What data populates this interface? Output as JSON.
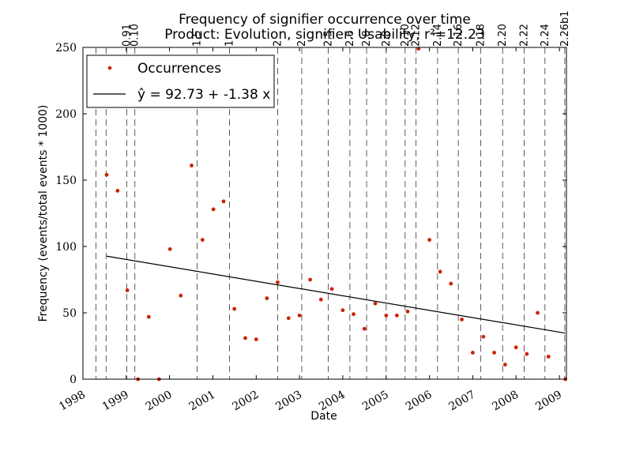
{
  "chart_data": {
    "type": "scatter",
    "title": "Frequency of signifier occurrence over time",
    "subtitle": "Product: Evolution, signifier: Usability, r²=12.23",
    "xlabel": "Date",
    "ylabel": "Frequency (events/total events * 1000)",
    "xlim": [
      "1998-01-01",
      "2009-03-01"
    ],
    "ylim": [
      0,
      250
    ],
    "yticks": [
      0,
      50,
      100,
      150,
      200,
      250
    ],
    "xticks": [
      {
        "label": "1998",
        "date": "1998-01-01"
      },
      {
        "label": "1999",
        "date": "1999-01-01"
      },
      {
        "label": "2000",
        "date": "2000-01-01"
      },
      {
        "label": "2001",
        "date": "2001-01-01"
      },
      {
        "label": "2002",
        "date": "2002-01-01"
      },
      {
        "label": "2003",
        "date": "2003-01-01"
      },
      {
        "label": "2004",
        "date": "2004-01-01"
      },
      {
        "label": "2005",
        "date": "2005-01-01"
      },
      {
        "label": "2006",
        "date": "2006-01-01"
      },
      {
        "label": "2007",
        "date": "2007-01-01"
      },
      {
        "label": "2008",
        "date": "2008-01-01"
      },
      {
        "label": "2009",
        "date": "2009-01-01"
      }
    ],
    "grid": false,
    "legend": {
      "position": "top-left"
    },
    "series": [
      {
        "name": "Occurrences",
        "color": "#cc2200",
        "points": [
          {
            "x": "1998-07-20",
            "y": 154
          },
          {
            "x": "1998-10-20",
            "y": 142
          },
          {
            "x": "1999-01-10",
            "y": 67
          },
          {
            "x": "1999-04-10",
            "y": 0
          },
          {
            "x": "1999-07-10",
            "y": 47
          },
          {
            "x": "1999-10-05",
            "y": 0
          },
          {
            "x": "2000-01-05",
            "y": 98
          },
          {
            "x": "2000-04-05",
            "y": 63
          },
          {
            "x": "2000-07-05",
            "y": 161
          },
          {
            "x": "2000-10-05",
            "y": 105
          },
          {
            "x": "2001-01-05",
            "y": 128
          },
          {
            "x": "2001-04-01",
            "y": 134
          },
          {
            "x": "2001-07-01",
            "y": 53
          },
          {
            "x": "2001-10-01",
            "y": 31
          },
          {
            "x": "2002-01-01",
            "y": 30
          },
          {
            "x": "2002-04-01",
            "y": 61
          },
          {
            "x": "2002-07-01",
            "y": 73
          },
          {
            "x": "2002-10-01",
            "y": 46
          },
          {
            "x": "2003-01-01",
            "y": 48
          },
          {
            "x": "2003-04-01",
            "y": 75
          },
          {
            "x": "2003-07-01",
            "y": 60
          },
          {
            "x": "2003-10-01",
            "y": 68
          },
          {
            "x": "2004-01-01",
            "y": 52
          },
          {
            "x": "2004-04-01",
            "y": 49
          },
          {
            "x": "2004-07-01",
            "y": 38
          },
          {
            "x": "2004-10-01",
            "y": 57
          },
          {
            "x": "2005-01-01",
            "y": 48
          },
          {
            "x": "2005-04-01",
            "y": 48
          },
          {
            "x": "2005-07-01",
            "y": 51
          },
          {
            "x": "2005-10-01",
            "y": 249
          },
          {
            "x": "2006-01-01",
            "y": 105
          },
          {
            "x": "2006-04-01",
            "y": 81
          },
          {
            "x": "2006-07-01",
            "y": 72
          },
          {
            "x": "2006-10-01",
            "y": 45
          },
          {
            "x": "2007-01-01",
            "y": 20
          },
          {
            "x": "2007-04-01",
            "y": 32
          },
          {
            "x": "2007-07-01",
            "y": 20
          },
          {
            "x": "2007-10-01",
            "y": 11
          },
          {
            "x": "2008-01-01",
            "y": 24
          },
          {
            "x": "2008-04-01",
            "y": 19
          },
          {
            "x": "2008-07-01",
            "y": 50
          },
          {
            "x": "2008-10-01",
            "y": 17
          },
          {
            "x": "2009-02-20",
            "y": 0
          }
        ]
      },
      {
        "name": "ŷ = 92.73 + -1.38 x",
        "color": "#000000",
        "type": "line",
        "points": [
          {
            "x": "1998-07-20",
            "y": 92.7
          },
          {
            "x": "2009-02-20",
            "y": 34.7
          }
        ]
      }
    ],
    "releases": [
      {
        "label": "",
        "date": "1998-04-20"
      },
      {
        "label": "",
        "date": "1998-07-15"
      },
      {
        "label": "0.91",
        "date": "1999-01-05"
      },
      {
        "label": "0.10",
        "date": "1999-03-15"
      },
      {
        "label": "1.5",
        "date": "2000-08-20"
      },
      {
        "label": "1",
        "date": "2001-05-20"
      },
      {
        "label": "2",
        "date": "2002-07-01"
      },
      {
        "label": "2",
        "date": "2003-01-20"
      },
      {
        "label": "2.5",
        "date": "2003-09-01"
      },
      {
        "label": "2.6",
        "date": "2004-03-01"
      },
      {
        "label": "2.8",
        "date": "2004-07-20"
      },
      {
        "label": "2.8",
        "date": "2005-01-01"
      },
      {
        "label": "2.10",
        "date": "2005-06-10"
      },
      {
        "label": "2.12",
        "date": "2005-09-10"
      },
      {
        "label": "2.14",
        "date": "2006-03-10"
      },
      {
        "label": "2.16",
        "date": "2006-09-01"
      },
      {
        "label": "2.18",
        "date": "2007-03-10"
      },
      {
        "label": "2.20",
        "date": "2007-09-10"
      },
      {
        "label": "2.22",
        "date": "2008-03-10"
      },
      {
        "label": "2.24",
        "date": "2008-09-01"
      },
      {
        "label": "2.26b1",
        "date": "2009-02-15"
      }
    ]
  }
}
